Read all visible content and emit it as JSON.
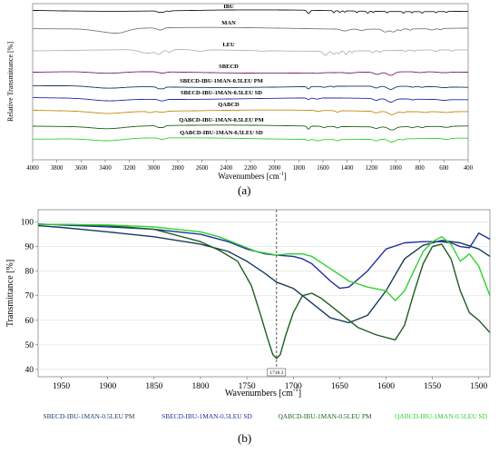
{
  "chart_data": [
    {
      "type": "line",
      "panel_label": "(a)",
      "xlabel": "Wavenumbers [cm",
      "xlabel_sup": "-1",
      "xlabel_suffix": "]",
      "ylabel": "Relative Transmittance [%]",
      "x_ticks": [
        4000,
        3800,
        3600,
        3400,
        3200,
        3000,
        2800,
        2600,
        2400,
        2200,
        2000,
        1800,
        1600,
        1400,
        1200,
        1000,
        800,
        600,
        400
      ],
      "xlim": [
        4000,
        400
      ],
      "x_reversed": true,
      "series": [
        {
          "name": "IBU",
          "color": "#1a1a1a",
          "baseline": 0.95,
          "dips": [
            [
              2955,
              0.05,
              25
            ],
            [
              2920,
              0.05,
              20
            ],
            [
              2870,
              0.03,
              15
            ],
            [
              1720,
              0.13,
              15
            ],
            [
              1510,
              0.08,
              10
            ],
            [
              1460,
              0.06,
              12
            ],
            [
              1420,
              0.05,
              10
            ],
            [
              1320,
              0.06,
              10
            ],
            [
              1230,
              0.08,
              12
            ],
            [
              1185,
              0.05,
              8
            ],
            [
              1070,
              0.05,
              10
            ],
            [
              935,
              0.06,
              10
            ],
            [
              865,
              0.05,
              8
            ],
            [
              780,
              0.06,
              10
            ],
            [
              665,
              0.05,
              10
            ],
            [
              580,
              0.04,
              10
            ]
          ]
        },
        {
          "name": "MAN",
          "color": "#7a7a7a",
          "baseline": 0.9,
          "dips": [
            [
              3380,
              0.12,
              160
            ],
            [
              3280,
              0.09,
              100
            ],
            [
              2960,
              0.06,
              30
            ],
            [
              2930,
              0.05,
              25
            ],
            [
              1420,
              0.07,
              40
            ],
            [
              1280,
              0.05,
              30
            ],
            [
              1085,
              0.11,
              30
            ],
            [
              1020,
              0.11,
              30
            ],
            [
              960,
              0.06,
              15
            ],
            [
              880,
              0.05,
              15
            ],
            [
              700,
              0.05,
              30
            ],
            [
              630,
              0.04,
              20
            ]
          ]
        },
        {
          "name": "LEU",
          "color": "#b4b4b4",
          "baseline": 0.89,
          "dips": [
            [
              3050,
              0.14,
              90
            ],
            [
              2955,
              0.14,
              30
            ],
            [
              2870,
              0.1,
              30
            ],
            [
              2620,
              0.06,
              60
            ],
            [
              2100,
              0.02,
              40
            ],
            [
              1580,
              0.16,
              25
            ],
            [
              1510,
              0.12,
              20
            ],
            [
              1470,
              0.1,
              15
            ],
            [
              1410,
              0.13,
              15
            ],
            [
              1360,
              0.07,
              10
            ],
            [
              1190,
              0.07,
              15
            ],
            [
              1130,
              0.06,
              15
            ],
            [
              920,
              0.05,
              15
            ],
            [
              845,
              0.05,
              10
            ],
            [
              670,
              0.06,
              20
            ],
            [
              530,
              0.05,
              15
            ]
          ]
        },
        {
          "name": "SBECD",
          "color": "#7b1f6e",
          "baseline": 0.88,
          "dips": [
            [
              3380,
              0.07,
              180
            ],
            [
              2930,
              0.05,
              40
            ],
            [
              1650,
              0.02,
              30
            ],
            [
              1380,
              0.03,
              40
            ],
            [
              1150,
              0.09,
              40
            ],
            [
              1040,
              0.13,
              40
            ],
            [
              800,
              0.03,
              40
            ],
            [
              600,
              0.03,
              60
            ]
          ]
        },
        {
          "name": "SBECD-IBU-1MAN-0.5LEU PM",
          "color": "#173a5c",
          "baseline": 0.885,
          "dips": [
            [
              3380,
              0.08,
              180
            ],
            [
              2955,
              0.07,
              25
            ],
            [
              2920,
              0.06,
              20
            ],
            [
              1720,
              0.09,
              15
            ],
            [
              1590,
              0.04,
              20
            ],
            [
              1510,
              0.03,
              10
            ],
            [
              1160,
              0.07,
              30
            ],
            [
              1040,
              0.12,
              40
            ],
            [
              860,
              0.03,
              20
            ],
            [
              780,
              0.03,
              20
            ],
            [
              600,
              0.03,
              40
            ]
          ]
        },
        {
          "name": "SBECD-IBU-1MAN-0.5LEU SD",
          "color": "#1f2e9e",
          "baseline": 0.88,
          "dips": [
            [
              3380,
              0.08,
              180
            ],
            [
              2930,
              0.06,
              35
            ],
            [
              1720,
              0.06,
              15
            ],
            [
              1650,
              0.04,
              30
            ],
            [
              1160,
              0.07,
              30
            ],
            [
              1040,
              0.13,
              40
            ],
            [
              860,
              0.03,
              20
            ],
            [
              600,
              0.03,
              40
            ]
          ]
        },
        {
          "name": "QABCD",
          "color": "#c08c10",
          "baseline": 0.87,
          "dips": [
            [
              3380,
              0.08,
              180
            ],
            [
              3030,
              0.05,
              30
            ],
            [
              2930,
              0.04,
              40
            ],
            [
              1640,
              0.04,
              30
            ],
            [
              1480,
              0.06,
              20
            ],
            [
              1160,
              0.06,
              30
            ],
            [
              1030,
              0.12,
              40
            ],
            [
              940,
              0.04,
              20
            ],
            [
              760,
              0.03,
              30
            ],
            [
              580,
              0.03,
              50
            ]
          ]
        },
        {
          "name": "QABCD-IBU-1MAN-0.5LEU PM",
          "color": "#1d5e1f",
          "baseline": 0.88,
          "dips": [
            [
              3380,
              0.09,
              180
            ],
            [
              2955,
              0.07,
              25
            ],
            [
              2920,
              0.06,
              20
            ],
            [
              1720,
              0.12,
              15
            ],
            [
              1590,
              0.05,
              20
            ],
            [
              1480,
              0.05,
              20
            ],
            [
              1160,
              0.06,
              30
            ],
            [
              1030,
              0.12,
              40
            ],
            [
              860,
              0.04,
              20
            ],
            [
              780,
              0.04,
              20
            ],
            [
              580,
              0.04,
              40
            ]
          ]
        },
        {
          "name": "QABCD-IBU-1MAN-0.5LEU SD",
          "color": "#2fd12f",
          "baseline": 0.88,
          "dips": [
            [
              3380,
              0.09,
              180
            ],
            [
              2930,
              0.06,
              35
            ],
            [
              1720,
              0.04,
              15
            ],
            [
              1640,
              0.05,
              30
            ],
            [
              1480,
              0.05,
              20
            ],
            [
              1160,
              0.06,
              30
            ],
            [
              1030,
              0.12,
              40
            ],
            [
              940,
              0.04,
              20
            ],
            [
              580,
              0.04,
              40
            ]
          ]
        }
      ]
    },
    {
      "type": "line",
      "panel_label": "(b)",
      "xlabel": "Wavenumbers [cm",
      "xlabel_sup": "-1",
      "xlabel_suffix": "]",
      "ylabel": "Transmittance [%]",
      "x_ticks": [
        1950,
        1900,
        1850,
        1800,
        1750,
        1700,
        1650,
        1600,
        1550,
        1500
      ],
      "y_ticks": [
        40,
        50,
        60,
        70,
        80,
        90,
        100
      ],
      "xlim": [
        1975,
        1488
      ],
      "ylim": [
        37,
        105
      ],
      "x_reversed": true,
      "marker_line": {
        "x": 1718,
        "label": "1718.3"
      },
      "series": [
        {
          "name": "SBECD-IBU-1MAN-0.5LEU PM",
          "color": "#173a5c",
          "x": [
            1975,
            1950,
            1900,
            1850,
            1800,
            1770,
            1750,
            1730,
            1718,
            1700,
            1680,
            1660,
            1640,
            1620,
            1600,
            1580,
            1560,
            1540,
            1520,
            1500,
            1488
          ],
          "y": [
            98.5,
            97.8,
            96,
            94,
            91,
            88,
            84,
            79,
            75.5,
            73,
            67,
            61,
            59,
            62,
            72,
            85,
            90.5,
            92.5,
            91.5,
            89,
            86
          ]
        },
        {
          "name": "SBECD-IBU-1MAN-0.5LEU SD",
          "color": "#1f2e9e",
          "x": [
            1975,
            1950,
            1900,
            1850,
            1800,
            1770,
            1750,
            1730,
            1718,
            1700,
            1690,
            1680,
            1660,
            1650,
            1640,
            1620,
            1600,
            1580,
            1560,
            1540,
            1530,
            1520,
            1510,
            1500,
            1488
          ],
          "y": [
            99.2,
            98.8,
            98,
            97,
            95,
            92,
            89,
            87,
            86.5,
            86,
            85,
            83,
            76,
            73,
            73.5,
            80,
            89,
            91.5,
            92,
            92,
            91.5,
            90,
            89.5,
            95.5,
            93
          ]
        },
        {
          "name": "QABCD-IBU-1MAN-0.5LEU PM",
          "color": "#1d5e1f",
          "x": [
            1975,
            1950,
            1900,
            1850,
            1800,
            1780,
            1760,
            1745,
            1735,
            1728,
            1722,
            1718,
            1714,
            1708,
            1700,
            1690,
            1680,
            1670,
            1650,
            1630,
            1610,
            1590,
            1580,
            1570,
            1560,
            1550,
            1540,
            1530,
            1520,
            1510,
            1500,
            1488
          ],
          "y": [
            99,
            99,
            98.5,
            97,
            92,
            88.5,
            84,
            74,
            62,
            53,
            46,
            44.5,
            46,
            54,
            63,
            70,
            71,
            69,
            63,
            57,
            54,
            52,
            58,
            71,
            83,
            90,
            91,
            85,
            72,
            63,
            60,
            55
          ]
        },
        {
          "name": "QABCD-IBU-1MAN-0.5LEU SD",
          "color": "#2fd12f",
          "x": [
            1975,
            1950,
            1900,
            1850,
            1800,
            1780,
            1760,
            1740,
            1725,
            1718,
            1705,
            1690,
            1680,
            1660,
            1640,
            1620,
            1600,
            1590,
            1580,
            1570,
            1560,
            1550,
            1540,
            1530,
            1520,
            1510,
            1500,
            1488
          ],
          "y": [
            99,
            99,
            98.8,
            98,
            96,
            94,
            91,
            88,
            87,
            86.5,
            87,
            87,
            86,
            81,
            76,
            73.5,
            72,
            68,
            72,
            80,
            88,
            92,
            94,
            91,
            84,
            87,
            82,
            70
          ]
        }
      ]
    }
  ]
}
